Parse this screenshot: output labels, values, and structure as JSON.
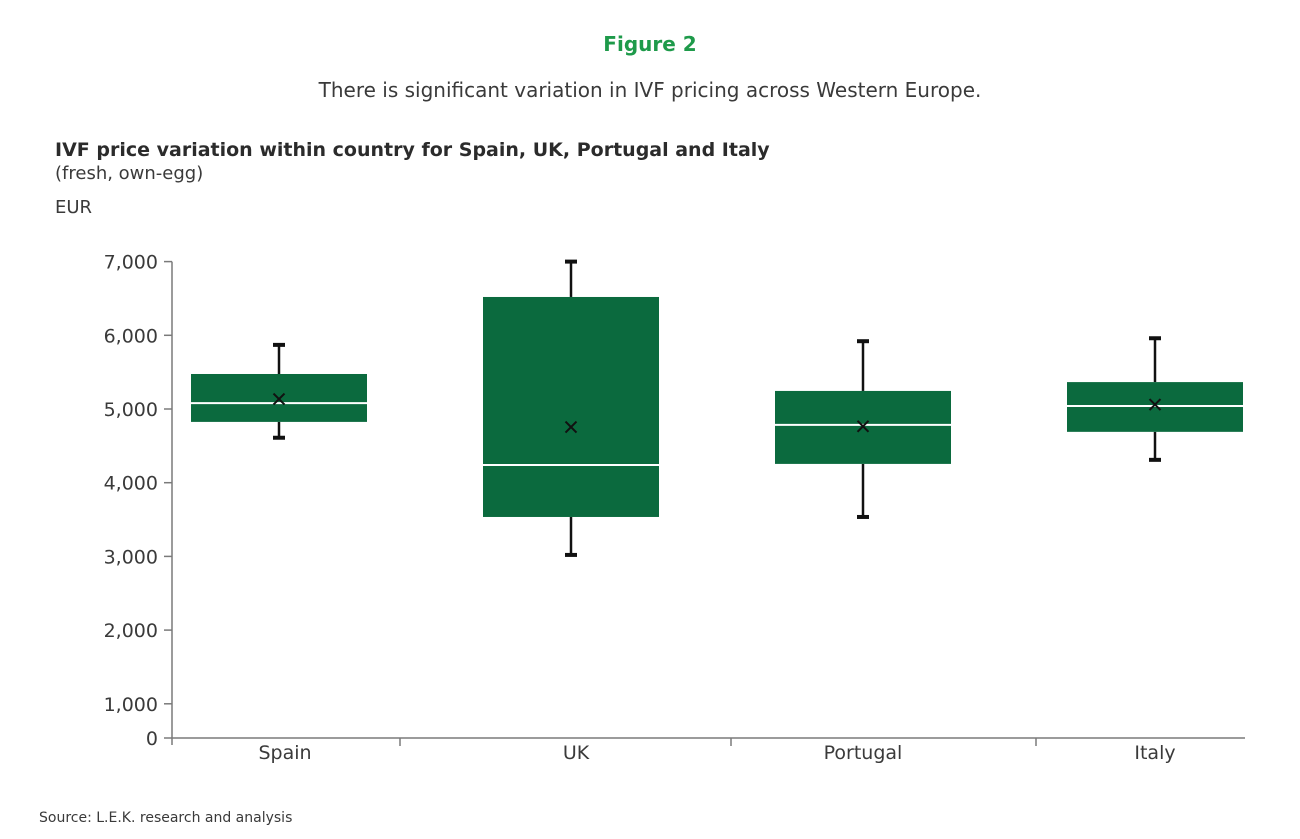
{
  "figure": {
    "label": "Figure 2",
    "subtitle": "There is significant variation in IVF pricing across Western Europe."
  },
  "chart": {
    "title": "IVF price variation within country for Spain, UK, Portugal and Italy",
    "subtitle": "(fresh, own-egg)",
    "unit": "EUR",
    "source": "Source: L.E.K. research and analysis",
    "box_color": "#0b6a3e",
    "median_color": "#ffffff",
    "whisker_color": "#111111"
  },
  "chart_data": {
    "type": "boxplot",
    "title": "IVF price variation within country for Spain, UK, Portugal and Italy",
    "subtitle": "(fresh, own-egg)",
    "xlabel": "",
    "ylabel": "EUR",
    "ylim": [
      0,
      7000
    ],
    "yticks": [
      "0",
      "1,000",
      "2,000",
      "3,000",
      "4,000",
      "5,000",
      "6,000",
      "7,000"
    ],
    "grid": false,
    "legend": null,
    "categories": [
      "Spain",
      "UK",
      "Portugal",
      "Italy"
    ],
    "series": [
      {
        "name": "Spain",
        "min": 4610,
        "q1": 4825,
        "median": 5080,
        "q3": 5475,
        "max": 5870,
        "mean": 5135
      },
      {
        "name": "UK",
        "min": 3020,
        "q1": 3535,
        "median": 4240,
        "q3": 6520,
        "max": 7000,
        "mean": 4755
      },
      {
        "name": "Portugal",
        "min": 3535,
        "q1": 4255,
        "median": 4785,
        "q3": 5245,
        "max": 5920,
        "mean": 4765
      },
      {
        "name": "Italy",
        "min": 4310,
        "q1": 4690,
        "median": 5040,
        "q3": 5365,
        "max": 5960,
        "mean": 5060
      }
    ],
    "source": "Source: L.E.K. research and analysis"
  }
}
